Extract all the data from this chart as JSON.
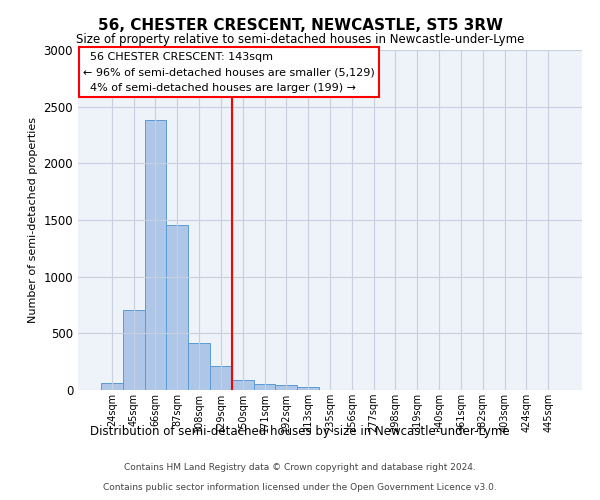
{
  "title": "56, CHESTER CRESCENT, NEWCASTLE, ST5 3RW",
  "subtitle": "Size of property relative to semi-detached houses in Newcastle-under-Lyme",
  "xlabel_bottom": "Distribution of semi-detached houses by size in Newcastle-under-Lyme",
  "ylabel": "Number of semi-detached properties",
  "footer_line1": "Contains HM Land Registry data © Crown copyright and database right 2024.",
  "footer_line2": "Contains public sector information licensed under the Open Government Licence v3.0.",
  "annotation_title": "56 CHESTER CRESCENT: 143sqm",
  "annotation_line1": "← 96% of semi-detached houses are smaller (5,129)",
  "annotation_line2": "4% of semi-detached houses are larger (199) →",
  "bar_color": "#aec6e8",
  "bar_edge_color": "#5b9bd5",
  "vline_color": "red",
  "categories": [
    "24sqm",
    "45sqm",
    "66sqm",
    "87sqm",
    "108sqm",
    "129sqm",
    "150sqm",
    "171sqm",
    "192sqm",
    "213sqm",
    "235sqm",
    "256sqm",
    "277sqm",
    "298sqm",
    "319sqm",
    "340sqm",
    "361sqm",
    "382sqm",
    "403sqm",
    "424sqm",
    "445sqm"
  ],
  "values": [
    65,
    710,
    2380,
    1460,
    415,
    210,
    85,
    55,
    40,
    30,
    0,
    0,
    0,
    0,
    0,
    0,
    0,
    0,
    0,
    0,
    0
  ],
  "ylim": [
    0,
    3000
  ],
  "yticks": [
    0,
    500,
    1000,
    1500,
    2000,
    2500,
    3000
  ],
  "vline_x": 5.5,
  "background_color": "#eef2f9",
  "grid_color": "#c8d0e0"
}
